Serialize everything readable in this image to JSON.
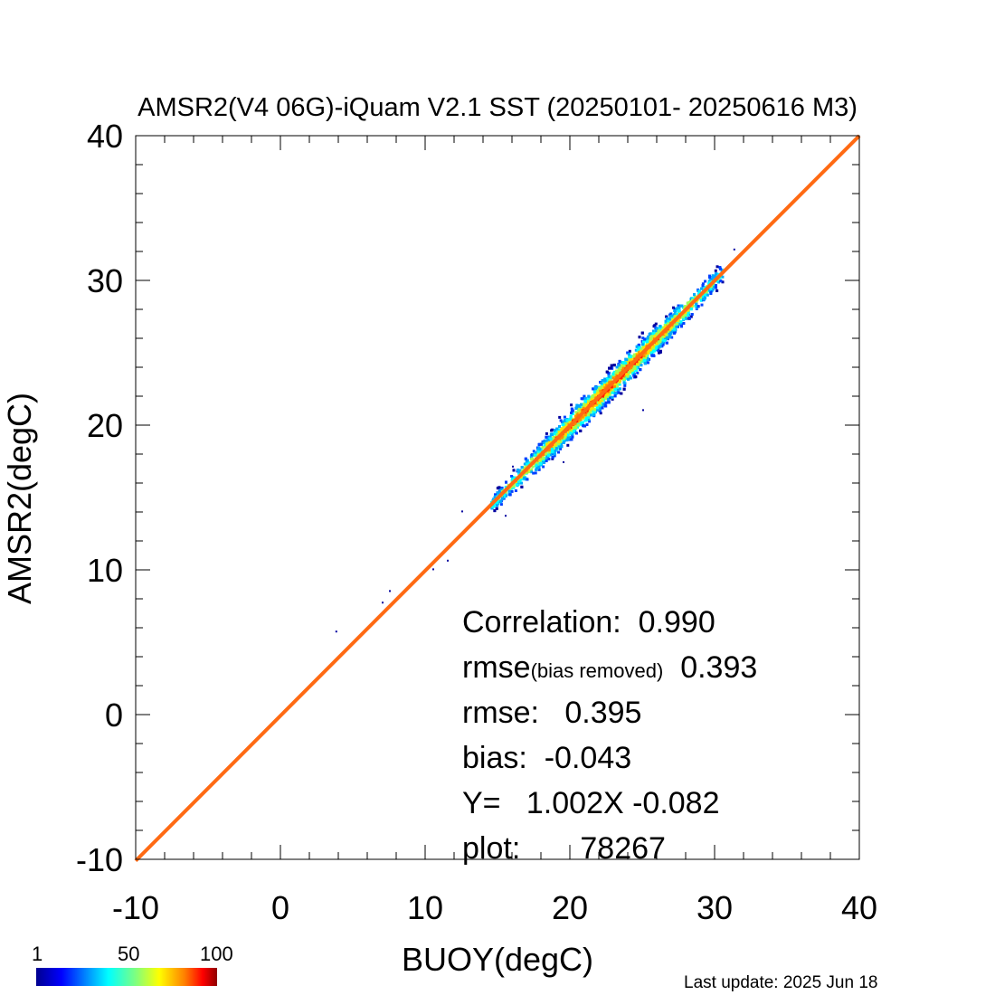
{
  "chart_data": {
    "type": "scatter",
    "title": "AMSR2(V4 06G)-iQuam V2.1 SST (20250101- 20250616 M3)",
    "xlabel": "BUOY(degC)",
    "ylabel": "AMSR2(degC)",
    "xlim": [
      -10,
      40
    ],
    "ylim": [
      -10,
      40
    ],
    "xticks": [
      "-10",
      "0",
      "10",
      "20",
      "30",
      "40"
    ],
    "yticks": [
      "-10",
      "0",
      "10",
      "20",
      "30",
      "40"
    ],
    "density": {
      "center_line": [
        [
          14.5,
          14.8
        ],
        [
          17.5,
          17.7
        ],
        [
          20,
          20.1
        ],
        [
          22.5,
          22.5
        ],
        [
          25,
          25.1
        ],
        [
          28,
          28.2
        ],
        [
          30,
          30.2
        ]
      ],
      "x_range": [
        14.5,
        30.5
      ],
      "outliers": [
        [
          7.5,
          8.6
        ],
        [
          7,
          7.8
        ],
        [
          10.5,
          10.1
        ],
        [
          11.5,
          10.7
        ],
        [
          3.8,
          5.8
        ],
        [
          12.5,
          14.1
        ],
        [
          15.5,
          13.8
        ],
        [
          25,
          21.1
        ],
        [
          31.3,
          32.2
        ],
        [
          19.5,
          17.5
        ],
        [
          16,
          17.2
        ]
      ]
    },
    "regression": {
      "slope": 1.002,
      "intercept": -0.082,
      "color": "#ff6a13"
    },
    "stats": {
      "correlation_label": "Correlation:",
      "correlation": "0.990",
      "rmse_br_label": "rmse",
      "rmse_br_sub": "(bias removed)",
      "rmse_br": "0.393",
      "rmse_label": "rmse:",
      "rmse": "0.395",
      "bias_label": "bias:",
      "bias": "-0.043",
      "fit_label": "Y=",
      "fit": "1.002X -0.082",
      "plot_label": "plot:",
      "plot": "78267"
    },
    "colorbar": {
      "min": "1",
      "mid": "50",
      "max": "100"
    },
    "grid": false
  },
  "footer": {
    "last_update": "Last update: 2025 Jun 18"
  }
}
